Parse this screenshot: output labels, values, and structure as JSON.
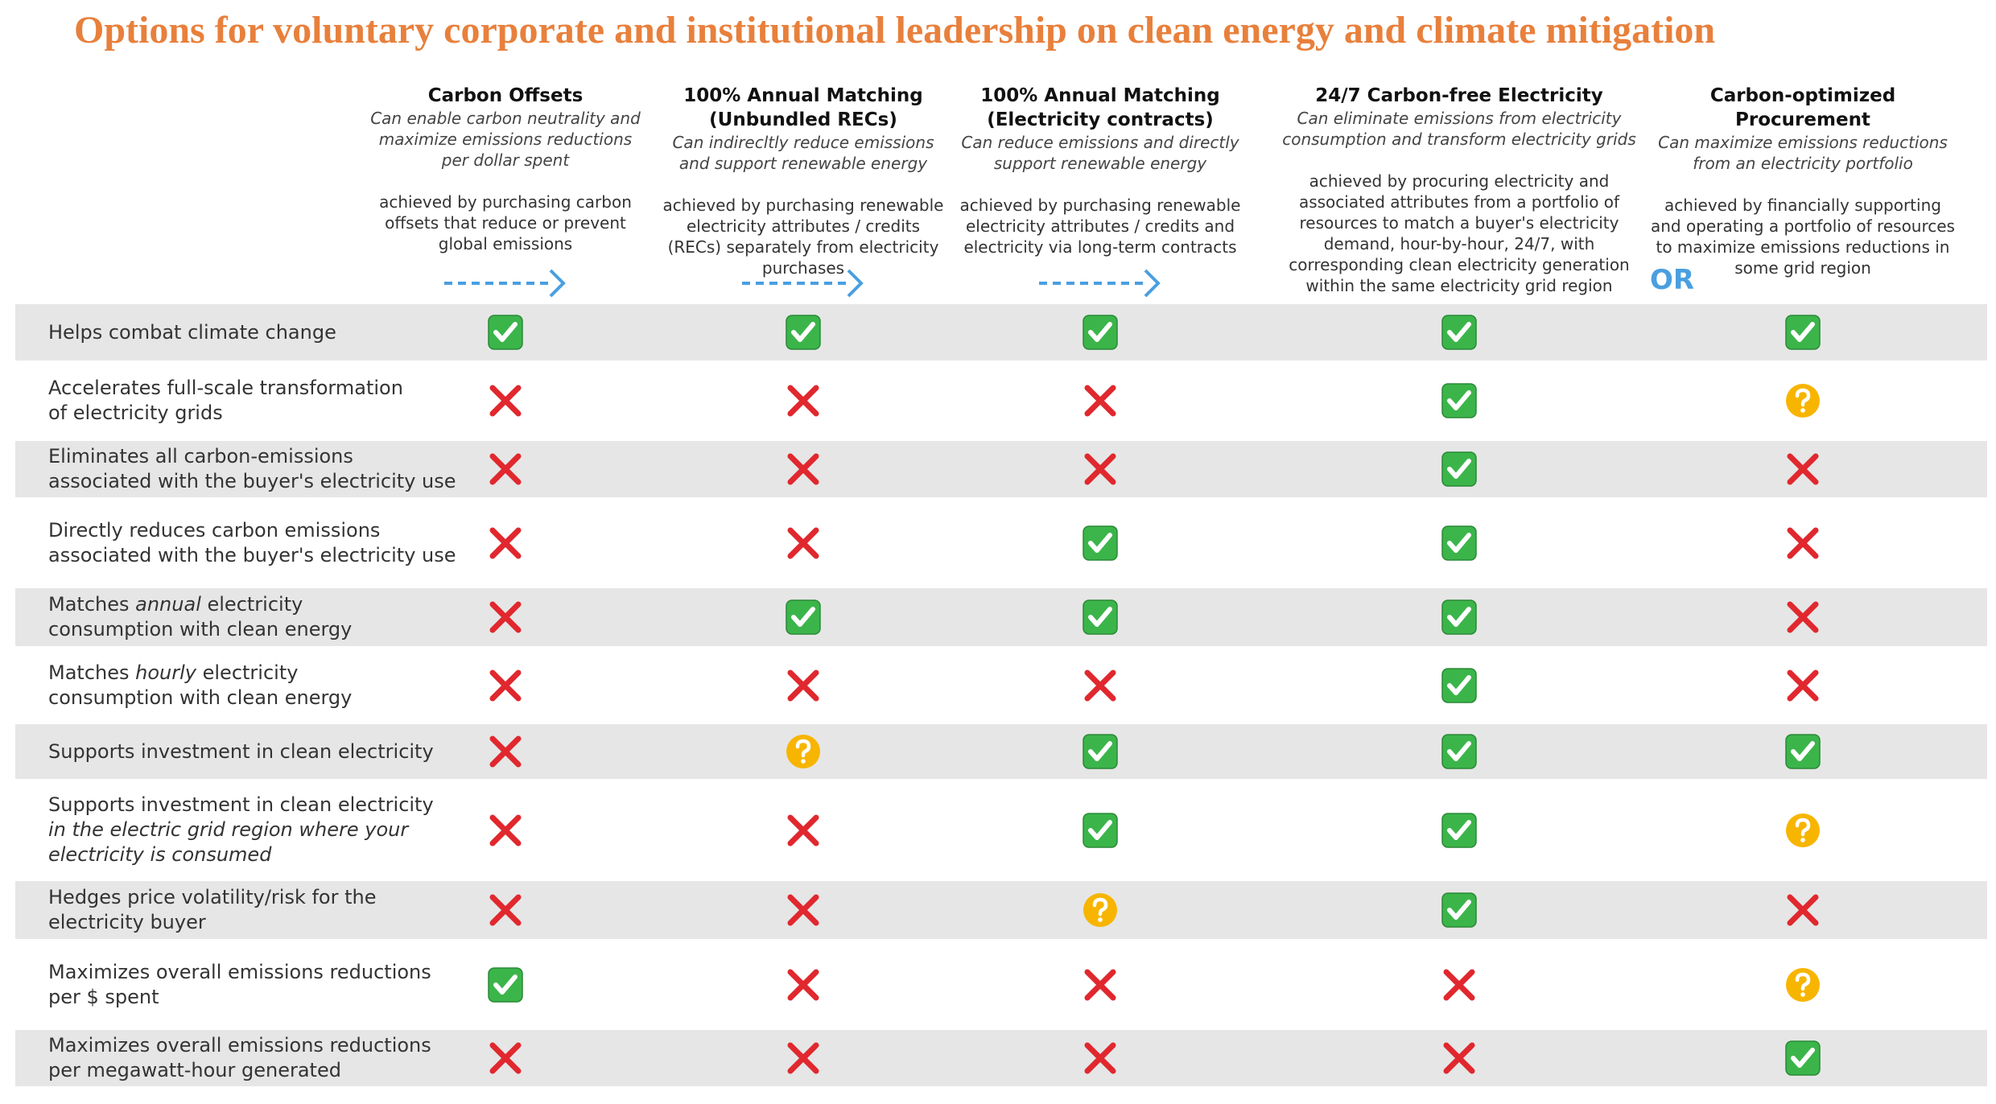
{
  "title": "Options for voluntary corporate and institutional leadership on clean energy and climate mitigation",
  "columns": [
    {
      "name": "Carbon Offsets",
      "tagline": "Can enable carbon neutrality and maximize emissions reductions per dollar spent",
      "description": "achieved by purchasing carbon offsets that reduce or prevent global emissions"
    },
    {
      "name": "100% Annual Matching (Unbundled RECs)",
      "tagline": "Can indirecltly reduce emissions and support renewable energy",
      "description": "achieved by purchasing renewable electricity attributes / credits (RECs) separately from electricity purchases"
    },
    {
      "name": "100% Annual Matching (Electricity contracts)",
      "tagline": "Can reduce emissions and directly support renewable energy",
      "description": "achieved by purchasing renewable electricity attributes / credits and electricity via long-term contracts"
    },
    {
      "name": "24/7 Carbon-free Electricity",
      "tagline": "Can eliminate emissions from electricity consumption and transform electricity grids",
      "description": "achieved by procuring electricity and associated attributes from a portfolio of resources to match a buyer's electricity demand, hour-by-hour, 24/7, with corresponding clean electricity generation within the same electricity grid region"
    },
    {
      "name": "Carbon-optimized Procurement",
      "tagline": "Can maximize emissions reductions from an electricity portfolio",
      "description": "achieved by financially supporting and operating a portfolio of resources to maximize emissions reductions in some grid region"
    }
  ],
  "or_label": "OR",
  "rows": [
    {
      "label": [
        [
          {
            "text": "Helps combat climate change"
          }
        ]
      ],
      "cells": [
        "✅",
        "✅",
        "✅",
        "✅",
        "✅"
      ]
    },
    {
      "label": [
        [
          {
            "text": "Accelerates full-scale transformation"
          }
        ],
        [
          {
            "text": "of electricity grids"
          }
        ]
      ],
      "cells": [
        "❌",
        "❌",
        "❌",
        "✅",
        "❓"
      ]
    },
    {
      "label": [
        [
          {
            "text": "Eliminates all carbon-emissions"
          }
        ],
        [
          {
            "text": "associated with the buyer's electricity use"
          }
        ]
      ],
      "cells": [
        "❌",
        "❌",
        "❌",
        "✅",
        "❌"
      ]
    },
    {
      "label": [
        [
          {
            "text": "Directly reduces carbon emissions"
          }
        ],
        [
          {
            "text": "associated with the buyer's electricity use"
          }
        ]
      ],
      "cells": [
        "❌",
        "❌",
        "✅",
        "✅",
        "❌"
      ]
    },
    {
      "label": [
        [
          {
            "text": "Matches "
          },
          {
            "text": "annual",
            "italic": true
          },
          {
            "text": " electricity"
          }
        ],
        [
          {
            "text": "consumption with clean energy"
          }
        ]
      ],
      "cells": [
        "❌",
        "✅",
        "✅",
        "✅",
        "❌"
      ]
    },
    {
      "label": [
        [
          {
            "text": "Matches "
          },
          {
            "text": "hourly",
            "italic": true
          },
          {
            "text": " electricity"
          }
        ],
        [
          {
            "text": "consumption with clean energy"
          }
        ]
      ],
      "cells": [
        "❌",
        "❌",
        "❌",
        "✅",
        "❌"
      ]
    },
    {
      "label": [
        [
          {
            "text": "Supports investment in clean electricity"
          }
        ]
      ],
      "cells": [
        "❌",
        "❓",
        "✅",
        "✅",
        "✅"
      ]
    },
    {
      "label": [
        [
          {
            "text": "Supports investment in clean electricity"
          }
        ],
        [
          {
            "text": "in the electric grid region where your",
            "italic": true
          }
        ],
        [
          {
            "text": "electricity is consumed",
            "italic": true
          }
        ]
      ],
      "cells": [
        "❌",
        "❌",
        "✅",
        "✅",
        "❓"
      ]
    },
    {
      "label": [
        [
          {
            "text": "Hedges price volatility/risk for the"
          }
        ],
        [
          {
            "text": "electricity buyer"
          }
        ]
      ],
      "cells": [
        "❌",
        "❌",
        "❓",
        "✅",
        "❌"
      ]
    },
    {
      "label": [
        [
          {
            "text": "Maximizes overall emissions reductions"
          }
        ],
        [
          {
            "text": "per $ spent"
          }
        ]
      ],
      "cells": [
        "✅",
        "❌",
        "❌",
        "❌",
        "❓"
      ]
    },
    {
      "label": [
        [
          {
            "text": "Maximizes overall emissions reductions"
          }
        ],
        [
          {
            "text": "per megawatt-hour generated"
          }
        ]
      ],
      "cells": [
        "❌",
        "❌",
        "❌",
        "❌",
        "✅"
      ]
    }
  ]
}
